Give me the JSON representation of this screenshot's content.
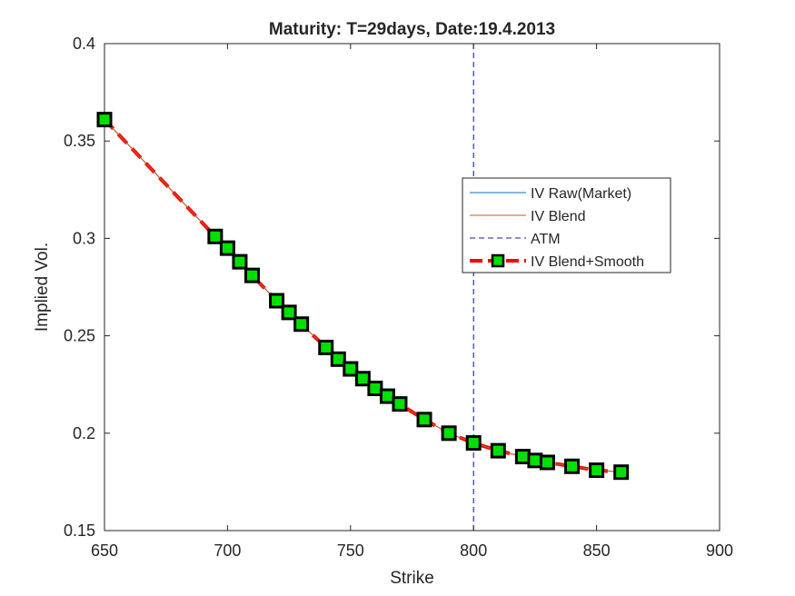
{
  "chart_data": {
    "type": "line",
    "title": "Maturity: T=29days, Date:19.4.2013",
    "xlabel": "Strike",
    "ylabel": "Implied Vol.",
    "xlim": [
      650,
      900
    ],
    "ylim": [
      0.15,
      0.4
    ],
    "xticks": [
      650,
      700,
      750,
      800,
      850,
      900
    ],
    "xtick_labels": [
      "650",
      "700",
      "750",
      "800",
      "850",
      "900"
    ],
    "yticks": [
      0.15,
      0.2,
      0.25,
      0.3,
      0.35,
      0.4
    ],
    "ytick_labels": [
      "0.15",
      "0.2",
      "0.25",
      "0.3",
      "0.35",
      "0.4"
    ],
    "grid": false,
    "legend_position": "right",
    "atm_strike": 800,
    "series": [
      {
        "name": "IV Raw(Market)",
        "color": "#0072BD",
        "x": [
          650,
          695,
          700,
          705,
          710,
          720,
          725,
          730,
          740,
          745,
          750,
          755,
          760,
          765,
          770,
          780,
          790,
          800,
          810,
          820,
          825,
          830,
          840,
          850,
          860
        ],
        "y": [
          0.361,
          0.301,
          0.295,
          0.288,
          0.281,
          0.268,
          0.262,
          0.256,
          0.244,
          0.238,
          0.233,
          0.228,
          0.223,
          0.219,
          0.215,
          0.207,
          0.2,
          0.195,
          0.191,
          0.188,
          0.186,
          0.185,
          0.183,
          0.181,
          0.18
        ]
      },
      {
        "name": "IV Blend",
        "color": "#D95319",
        "x": [
          650,
          695,
          700,
          705,
          710,
          720,
          725,
          730,
          740,
          745,
          750,
          755,
          760,
          765,
          770,
          780,
          790,
          800,
          810,
          820,
          825,
          830,
          840,
          850,
          860
        ],
        "y": [
          0.361,
          0.301,
          0.295,
          0.288,
          0.281,
          0.268,
          0.262,
          0.256,
          0.244,
          0.238,
          0.233,
          0.228,
          0.223,
          0.219,
          0.215,
          0.207,
          0.2,
          0.195,
          0.191,
          0.188,
          0.186,
          0.185,
          0.183,
          0.181,
          0.18
        ]
      },
      {
        "name": "ATM",
        "color": "#0000FF",
        "x": [
          800,
          800
        ],
        "y": [
          0.15,
          0.4
        ]
      },
      {
        "name": "IV Blend+Smooth",
        "color": "#FF0000",
        "marker_color": "#00E000",
        "x": [
          650,
          695,
          700,
          705,
          710,
          720,
          725,
          730,
          740,
          745,
          750,
          755,
          760,
          765,
          770,
          780,
          790,
          800,
          810,
          820,
          825,
          830,
          840,
          850,
          860
        ],
        "y": [
          0.361,
          0.301,
          0.295,
          0.288,
          0.281,
          0.268,
          0.262,
          0.256,
          0.244,
          0.238,
          0.233,
          0.228,
          0.223,
          0.219,
          0.215,
          0.207,
          0.2,
          0.195,
          0.191,
          0.188,
          0.186,
          0.185,
          0.183,
          0.181,
          0.18
        ]
      }
    ]
  }
}
